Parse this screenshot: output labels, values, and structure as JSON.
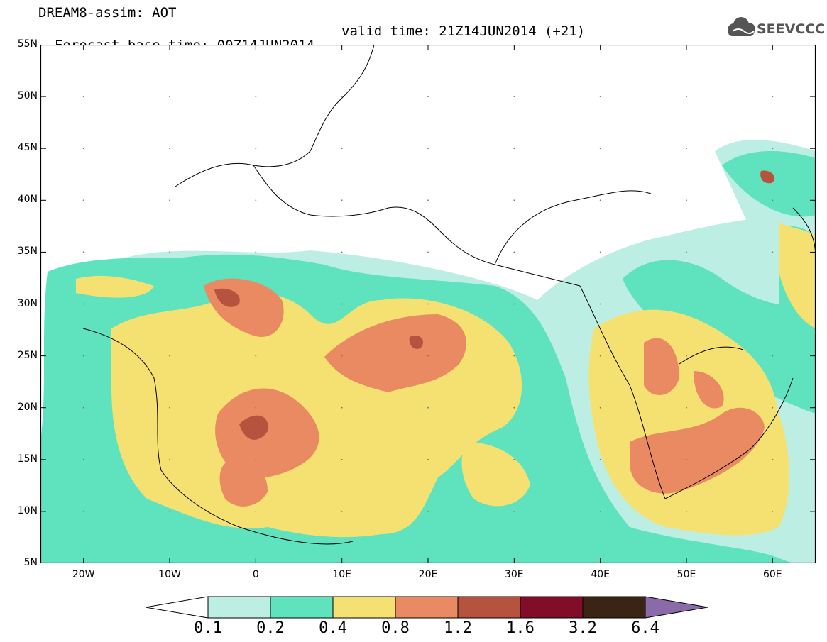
{
  "header": {
    "line1": "DREAM8-assim: AOT",
    "line2_left": "Forecast base time: 00Z14JUN2014",
    "line2_right": "valid time: 21Z14JUN2014 (+21)"
  },
  "logo": {
    "text": "SEEVCCC",
    "icon": "cloud-logo-icon"
  },
  "map": {
    "lon_range": [
      -25,
      65
    ],
    "lat_range": [
      5,
      55
    ],
    "lat_labels": [
      "55N",
      "50N",
      "45N",
      "40N",
      "35N",
      "30N",
      "25N",
      "20N",
      "15N",
      "10N",
      "5N"
    ],
    "lon_labels": [
      "20W",
      "10W",
      "0",
      "10E",
      "20E",
      "30E",
      "40E",
      "50E",
      "60E"
    ]
  },
  "legend": {
    "levels": [
      "0.1",
      "0.2",
      "0.4",
      "0.8",
      "1.2",
      "1.6",
      "3.2",
      "6.4"
    ],
    "colors": [
      "#ffffff",
      "#bdeee3",
      "#5fe2be",
      "#f5e172",
      "#ea8a62",
      "#b5533e",
      "#820d28",
      "#3c2414",
      "#8a6aa8"
    ]
  }
}
